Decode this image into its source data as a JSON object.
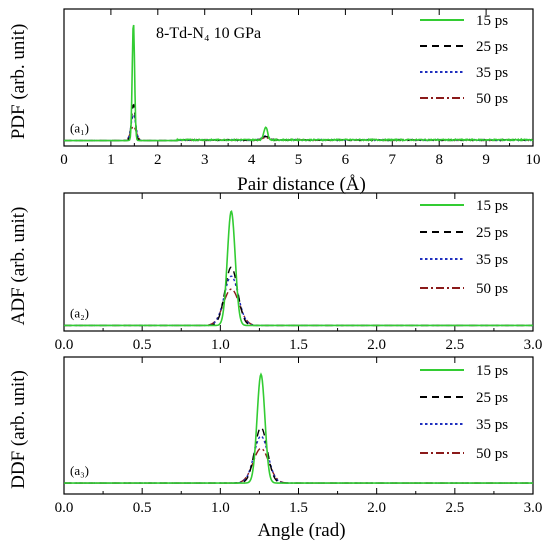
{
  "annotation": "8-Td-N₄    10 GPa",
  "chart_data": [
    {
      "type": "line",
      "panel_label": "(a₁)",
      "xlabel": "Pair distance (Å)",
      "ylabel": "PDF (arb. unit)",
      "xlim": [
        0,
        10
      ],
      "xticks": [
        "0",
        "1",
        "2",
        "3",
        "4",
        "5",
        "6",
        "7",
        "8",
        "9",
        "10"
      ],
      "ylim": [
        0,
        1
      ],
      "legend_position": "right",
      "series": [
        {
          "name": "15 ps",
          "color": "#33cc33",
          "dash": "solid",
          "peaks": [
            [
              1.48,
              0.92,
              0.025
            ],
            [
              4.3,
              0.1,
              0.04
            ]
          ],
          "noise": 0.01
        },
        {
          "name": "25 ps",
          "color": "#000000",
          "dash": "dash",
          "peaks": [
            [
              1.48,
              0.28,
              0.04
            ],
            [
              4.3,
              0.03,
              0.07
            ]
          ],
          "noise": 0.008
        },
        {
          "name": "35 ps",
          "color": "#1f2fbf",
          "dash": "dot",
          "peaks": [
            [
              1.48,
              0.2,
              0.05
            ],
            [
              4.3,
              0.03,
              0.07
            ]
          ],
          "noise": 0.008
        },
        {
          "name": "50 ps",
          "color": "#8b1a1a",
          "dash": "dashdot",
          "peaks": [
            [
              1.48,
              0.11,
              0.06
            ],
            [
              4.3,
              0.02,
              0.08
            ]
          ],
          "noise": 0.008
        }
      ]
    },
    {
      "type": "line",
      "panel_label": "(a₂)",
      "ylabel": "ADF (arb. unit)",
      "xlim": [
        0,
        3
      ],
      "xticks": [
        "0.0",
        "0.5",
        "1.0",
        "1.5",
        "2.0",
        "2.5",
        "3.0"
      ],
      "ylim": [
        0,
        1
      ],
      "legend_position": "right",
      "series": [
        {
          "name": "15 ps",
          "color": "#33cc33",
          "dash": "solid",
          "peaks": [
            [
              1.07,
              0.88,
              0.025
            ]
          ],
          "noise": 0.0
        },
        {
          "name": "25 ps",
          "color": "#000000",
          "dash": "dash",
          "peaks": [
            [
              1.07,
              0.45,
              0.04
            ]
          ],
          "noise": 0.0
        },
        {
          "name": "35 ps",
          "color": "#1f2fbf",
          "dash": "dot",
          "peaks": [
            [
              1.07,
              0.38,
              0.045
            ]
          ],
          "noise": 0.0
        },
        {
          "name": "50 ps",
          "color": "#8b1a1a",
          "dash": "dashdot",
          "peaks": [
            [
              1.07,
              0.28,
              0.05
            ]
          ],
          "noise": 0.0
        }
      ]
    },
    {
      "type": "line",
      "panel_label": "(a₃)",
      "xlabel": "Angle (rad)",
      "ylabel": "DDF (arb. unit)",
      "xlim": [
        0,
        3
      ],
      "xticks": [
        "0.0",
        "0.5",
        "1.0",
        "1.5",
        "2.0",
        "2.5",
        "3.0"
      ],
      "ylim": [
        0,
        1
      ],
      "legend_position": "right",
      "series": [
        {
          "name": "15 ps",
          "color": "#33cc33",
          "dash": "solid",
          "peaks": [
            [
              1.26,
              0.88,
              0.025
            ]
          ],
          "noise": 0.0
        },
        {
          "name": "25 ps",
          "color": "#000000",
          "dash": "dash",
          "peaks": [
            [
              1.26,
              0.45,
              0.04
            ]
          ],
          "noise": 0.0
        },
        {
          "name": "35 ps",
          "color": "#1f2fbf",
          "dash": "dot",
          "peaks": [
            [
              1.26,
              0.38,
              0.045
            ]
          ],
          "noise": 0.0
        },
        {
          "name": "50 ps",
          "color": "#8b1a1a",
          "dash": "dashdot",
          "peaks": [
            [
              1.26,
              0.28,
              0.05
            ]
          ],
          "noise": 0.0
        }
      ]
    }
  ]
}
